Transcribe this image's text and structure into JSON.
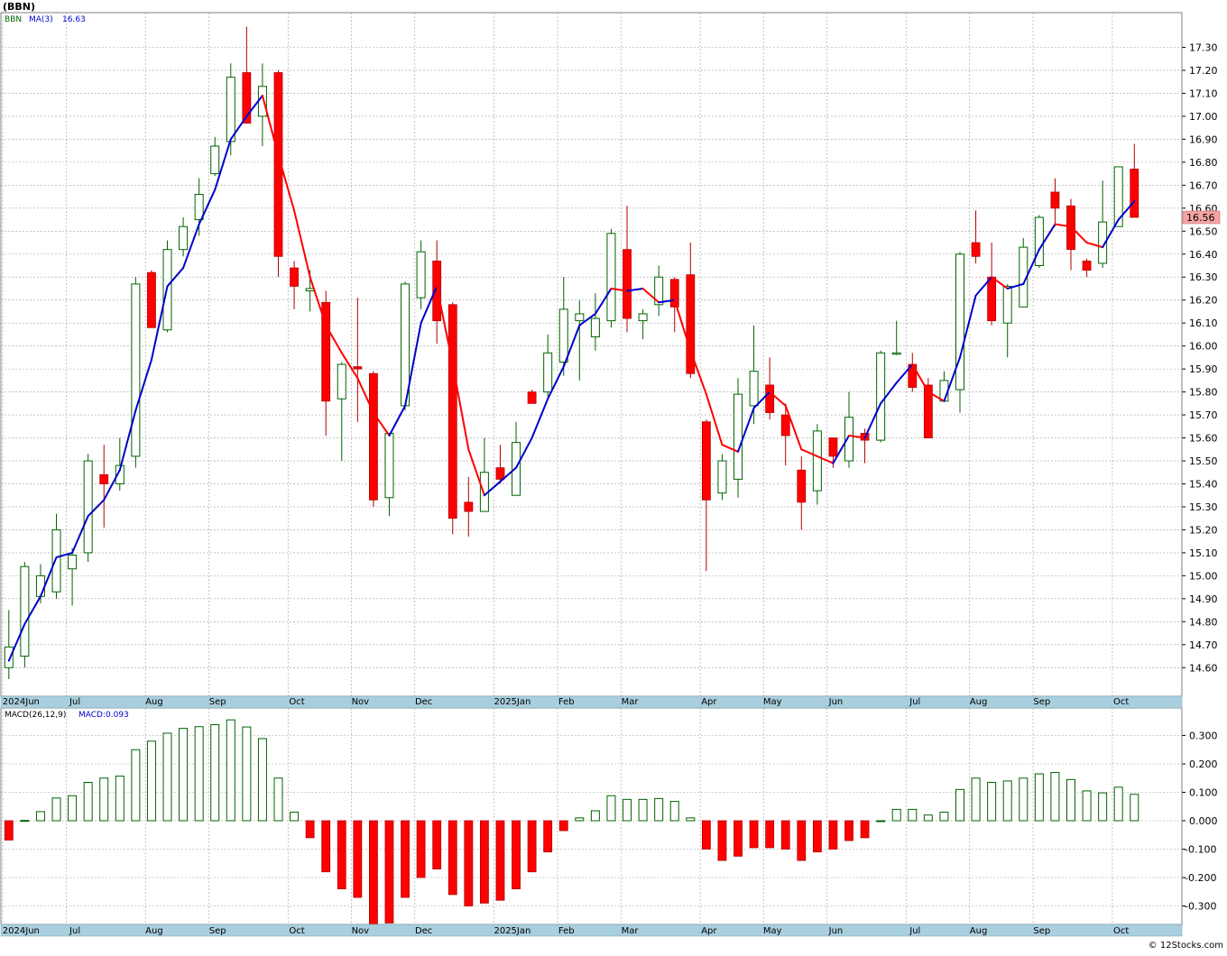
{
  "header": {
    "symbol": "(BBN)"
  },
  "price_panel": {
    "legend": {
      "symbol": "BBN",
      "ma_label": "MA(3)",
      "ma_value": "16.63"
    },
    "last_price": "16.56"
  },
  "macd_panel": {
    "legend": {
      "name": "MACD(26,12,9)",
      "value_label": "MACD:0.093"
    }
  },
  "footer": {
    "credit": "© 12Stocks.com"
  },
  "colors": {
    "up": "#006400",
    "down": "#ff0000",
    "ma_up": "#0000cc",
    "ma_down": "#ff0000",
    "grid": "#a0a0a0",
    "axis_bar": "#a9cede",
    "last_price_bg": "#f4a4a4"
  },
  "chart_data": [
    {
      "type": "candlestick",
      "title": "(BBN)",
      "frequency": "weekly",
      "ylim": [
        14.55,
        17.4
      ],
      "yticks": [
        "14.60",
        "14.70",
        "14.80",
        "14.90",
        "15.00",
        "15.10",
        "15.20",
        "15.30",
        "15.40",
        "15.50",
        "15.60",
        "15.70",
        "15.80",
        "15.90",
        "16.00",
        "16.10",
        "16.20",
        "16.30",
        "16.40",
        "16.50",
        "16.60",
        "16.70",
        "16.80",
        "16.90",
        "17.00",
        "17.10",
        "17.20",
        "17.30"
      ],
      "x_labels": [
        {
          "label": "2024Jun",
          "index": 0
        },
        {
          "label": "Jul",
          "index": 4
        },
        {
          "label": "Aug",
          "index": 9
        },
        {
          "label": "Sep",
          "index": 13
        },
        {
          "label": "Oct",
          "index": 18
        },
        {
          "label": "Nov",
          "index": 22
        },
        {
          "label": "Dec",
          "index": 26
        },
        {
          "label": "2025Jan",
          "index": 31
        },
        {
          "label": "Feb",
          "index": 35
        },
        {
          "label": "Mar",
          "index": 39
        },
        {
          "label": "Apr",
          "index": 44
        },
        {
          "label": "May",
          "index": 48
        },
        {
          "label": "Jun",
          "index": 52
        },
        {
          "label": "Jul",
          "index": 57
        },
        {
          "label": "Aug",
          "index": 61
        },
        {
          "label": "Sep",
          "index": 65
        },
        {
          "label": "Oct",
          "index": 70
        }
      ],
      "candles": [
        {
          "o": 14.6,
          "h": 14.85,
          "l": 14.55,
          "c": 14.69
        },
        {
          "o": 14.65,
          "h": 15.06,
          "l": 14.6,
          "c": 15.04
        },
        {
          "o": 14.91,
          "h": 15.05,
          "l": 14.88,
          "c": 15.0
        },
        {
          "o": 14.93,
          "h": 15.27,
          "l": 14.9,
          "c": 15.2
        },
        {
          "o": 15.03,
          "h": 15.12,
          "l": 14.87,
          "c": 15.09
        },
        {
          "o": 15.1,
          "h": 15.53,
          "l": 15.06,
          "c": 15.5
        },
        {
          "o": 15.44,
          "h": 15.57,
          "l": 15.21,
          "c": 15.4
        },
        {
          "o": 15.4,
          "h": 15.6,
          "l": 15.37,
          "c": 15.48
        },
        {
          "o": 15.52,
          "h": 16.3,
          "l": 15.47,
          "c": 16.27
        },
        {
          "o": 16.32,
          "h": 16.33,
          "l": 16.08,
          "c": 16.08
        },
        {
          "o": 16.07,
          "h": 16.46,
          "l": 16.06,
          "c": 16.42
        },
        {
          "o": 16.42,
          "h": 16.56,
          "l": 16.39,
          "c": 16.52
        },
        {
          "o": 16.55,
          "h": 16.73,
          "l": 16.48,
          "c": 16.66
        },
        {
          "o": 16.75,
          "h": 16.91,
          "l": 16.74,
          "c": 16.87
        },
        {
          "o": 16.89,
          "h": 17.23,
          "l": 16.83,
          "c": 17.17
        },
        {
          "o": 17.19,
          "h": 17.39,
          "l": 16.97,
          "c": 16.97
        },
        {
          "o": 17.0,
          "h": 17.23,
          "l": 16.87,
          "c": 17.13
        },
        {
          "o": 17.19,
          "h": 17.2,
          "l": 16.3,
          "c": 16.39
        },
        {
          "o": 16.34,
          "h": 16.37,
          "l": 16.16,
          "c": 16.26
        },
        {
          "o": 16.24,
          "h": 16.33,
          "l": 16.15,
          "c": 16.25
        },
        {
          "o": 16.19,
          "h": 16.24,
          "l": 15.61,
          "c": 15.76
        },
        {
          "o": 15.77,
          "h": 15.93,
          "l": 15.5,
          "c": 15.92
        },
        {
          "o": 15.91,
          "h": 16.21,
          "l": 15.67,
          "c": 15.9
        },
        {
          "o": 15.88,
          "h": 15.89,
          "l": 15.3,
          "c": 15.33
        },
        {
          "o": 15.34,
          "h": 15.62,
          "l": 15.26,
          "c": 15.62
        },
        {
          "o": 15.74,
          "h": 16.28,
          "l": 15.72,
          "c": 16.27
        },
        {
          "o": 16.21,
          "h": 16.46,
          "l": 16.16,
          "c": 16.41
        },
        {
          "o": 16.37,
          "h": 16.46,
          "l": 16.01,
          "c": 16.11
        },
        {
          "o": 16.18,
          "h": 16.19,
          "l": 15.18,
          "c": 15.25
        },
        {
          "o": 15.32,
          "h": 15.43,
          "l": 15.17,
          "c": 15.28
        },
        {
          "o": 15.28,
          "h": 15.6,
          "l": 15.28,
          "c": 15.45
        },
        {
          "o": 15.47,
          "h": 15.57,
          "l": 15.4,
          "c": 15.42
        },
        {
          "o": 15.35,
          "h": 15.67,
          "l": 15.35,
          "c": 15.58
        },
        {
          "o": 15.8,
          "h": 15.81,
          "l": 15.75,
          "c": 15.75
        },
        {
          "o": 15.8,
          "h": 16.05,
          "l": 15.78,
          "c": 15.97
        },
        {
          "o": 15.93,
          "h": 16.3,
          "l": 15.87,
          "c": 16.16
        },
        {
          "o": 16.11,
          "h": 16.2,
          "l": 15.85,
          "c": 16.14
        },
        {
          "o": 16.04,
          "h": 16.23,
          "l": 15.98,
          "c": 16.12
        },
        {
          "o": 16.11,
          "h": 16.51,
          "l": 16.08,
          "c": 16.49
        },
        {
          "o": 16.42,
          "h": 16.61,
          "l": 16.06,
          "c": 16.12
        },
        {
          "o": 16.11,
          "h": 16.16,
          "l": 16.03,
          "c": 16.14
        },
        {
          "o": 16.18,
          "h": 16.35,
          "l": 16.13,
          "c": 16.3
        },
        {
          "o": 16.29,
          "h": 16.3,
          "l": 16.06,
          "c": 16.17
        },
        {
          "o": 16.31,
          "h": 16.45,
          "l": 15.86,
          "c": 15.88
        },
        {
          "o": 15.67,
          "h": 15.68,
          "l": 15.02,
          "c": 15.33
        },
        {
          "o": 15.36,
          "h": 15.53,
          "l": 15.33,
          "c": 15.5
        },
        {
          "o": 15.42,
          "h": 15.86,
          "l": 15.34,
          "c": 15.79
        },
        {
          "o": 15.74,
          "h": 16.09,
          "l": 15.66,
          "c": 15.89
        },
        {
          "o": 15.83,
          "h": 15.95,
          "l": 15.68,
          "c": 15.71
        },
        {
          "o": 15.7,
          "h": 15.75,
          "l": 15.48,
          "c": 15.61
        },
        {
          "o": 15.46,
          "h": 15.52,
          "l": 15.2,
          "c": 15.32
        },
        {
          "o": 15.37,
          "h": 15.66,
          "l": 15.31,
          "c": 15.63
        },
        {
          "o": 15.6,
          "h": 15.6,
          "l": 15.47,
          "c": 15.52
        },
        {
          "o": 15.5,
          "h": 15.8,
          "l": 15.47,
          "c": 15.69
        },
        {
          "o": 15.62,
          "h": 15.64,
          "l": 15.49,
          "c": 15.59
        },
        {
          "o": 15.59,
          "h": 15.98,
          "l": 15.58,
          "c": 15.97
        },
        {
          "o": 15.97,
          "h": 16.11,
          "l": 15.96,
          "c": 15.97
        },
        {
          "o": 15.92,
          "h": 15.97,
          "l": 15.8,
          "c": 15.82
        },
        {
          "o": 15.83,
          "h": 15.86,
          "l": 15.6,
          "c": 15.6
        },
        {
          "o": 15.76,
          "h": 15.89,
          "l": 15.76,
          "c": 15.85
        },
        {
          "o": 15.81,
          "h": 16.41,
          "l": 15.71,
          "c": 16.4
        },
        {
          "o": 16.45,
          "h": 16.59,
          "l": 16.36,
          "c": 16.39
        },
        {
          "o": 16.3,
          "h": 16.45,
          "l": 16.09,
          "c": 16.11
        },
        {
          "o": 16.1,
          "h": 16.27,
          "l": 15.95,
          "c": 16.26
        },
        {
          "o": 16.17,
          "h": 16.47,
          "l": 16.17,
          "c": 16.43
        },
        {
          "o": 16.35,
          "h": 16.57,
          "l": 16.34,
          "c": 16.56
        },
        {
          "o": 16.67,
          "h": 16.73,
          "l": 16.52,
          "c": 16.6
        },
        {
          "o": 16.61,
          "h": 16.64,
          "l": 16.33,
          "c": 16.42
        },
        {
          "o": 16.37,
          "h": 16.38,
          "l": 16.3,
          "c": 16.33
        },
        {
          "o": 16.36,
          "h": 16.72,
          "l": 16.34,
          "c": 16.54
        },
        {
          "o": 16.52,
          "h": 16.78,
          "l": 16.52,
          "c": 16.78
        },
        {
          "o": 16.77,
          "h": 16.88,
          "l": 16.56,
          "c": 16.56
        }
      ],
      "ma3": [
        14.63,
        14.79,
        14.91,
        15.08,
        15.1,
        15.26,
        15.33,
        15.46,
        15.72,
        15.94,
        16.26,
        16.34,
        16.53,
        16.68,
        16.9,
        17.0,
        17.09,
        16.83,
        16.59,
        16.3,
        16.09,
        15.97,
        15.86,
        15.71,
        15.61,
        15.74,
        16.1,
        16.26,
        15.92,
        15.55,
        15.35,
        15.41,
        15.47,
        15.6,
        15.77,
        15.91,
        16.09,
        16.14,
        16.25,
        16.24,
        16.25,
        16.19,
        16.2,
        15.98,
        15.79,
        15.57,
        15.54,
        15.73,
        15.8,
        15.74,
        15.55,
        15.52,
        15.49,
        15.61,
        15.6,
        15.75,
        15.84,
        15.92,
        15.8,
        15.76,
        15.95,
        16.22,
        16.3,
        16.25,
        16.27,
        16.42,
        16.53,
        16.52,
        16.45,
        16.43,
        16.55,
        16.63
      ]
    },
    {
      "type": "bar",
      "title": "MACD(26,12,9)",
      "ylim": [
        -0.36,
        0.36
      ],
      "yticks": [
        "-0.300",
        "-0.200",
        "-0.100",
        "0.000",
        "0.100",
        "0.200",
        "0.300"
      ],
      "values": [
        -0.068,
        0.001,
        0.032,
        0.08,
        0.088,
        0.135,
        0.15,
        0.157,
        0.25,
        0.28,
        0.308,
        0.325,
        0.331,
        0.338,
        0.355,
        0.33,
        0.289,
        0.15,
        0.03,
        -0.06,
        -0.18,
        -0.24,
        -0.27,
        -0.37,
        -0.36,
        -0.27,
        -0.2,
        -0.17,
        -0.26,
        -0.3,
        -0.29,
        -0.28,
        -0.24,
        -0.18,
        -0.11,
        -0.035,
        0.01,
        0.035,
        0.088,
        0.075,
        0.075,
        0.078,
        0.068,
        0.01,
        -0.1,
        -0.14,
        -0.125,
        -0.095,
        -0.095,
        -0.1,
        -0.14,
        -0.11,
        -0.1,
        -0.07,
        -0.06,
        0.0,
        0.04,
        0.04,
        0.02,
        0.03,
        0.11,
        0.15,
        0.135,
        0.14,
        0.15,
        0.165,
        0.17,
        0.145,
        0.105,
        0.098,
        0.118,
        0.093
      ]
    }
  ]
}
